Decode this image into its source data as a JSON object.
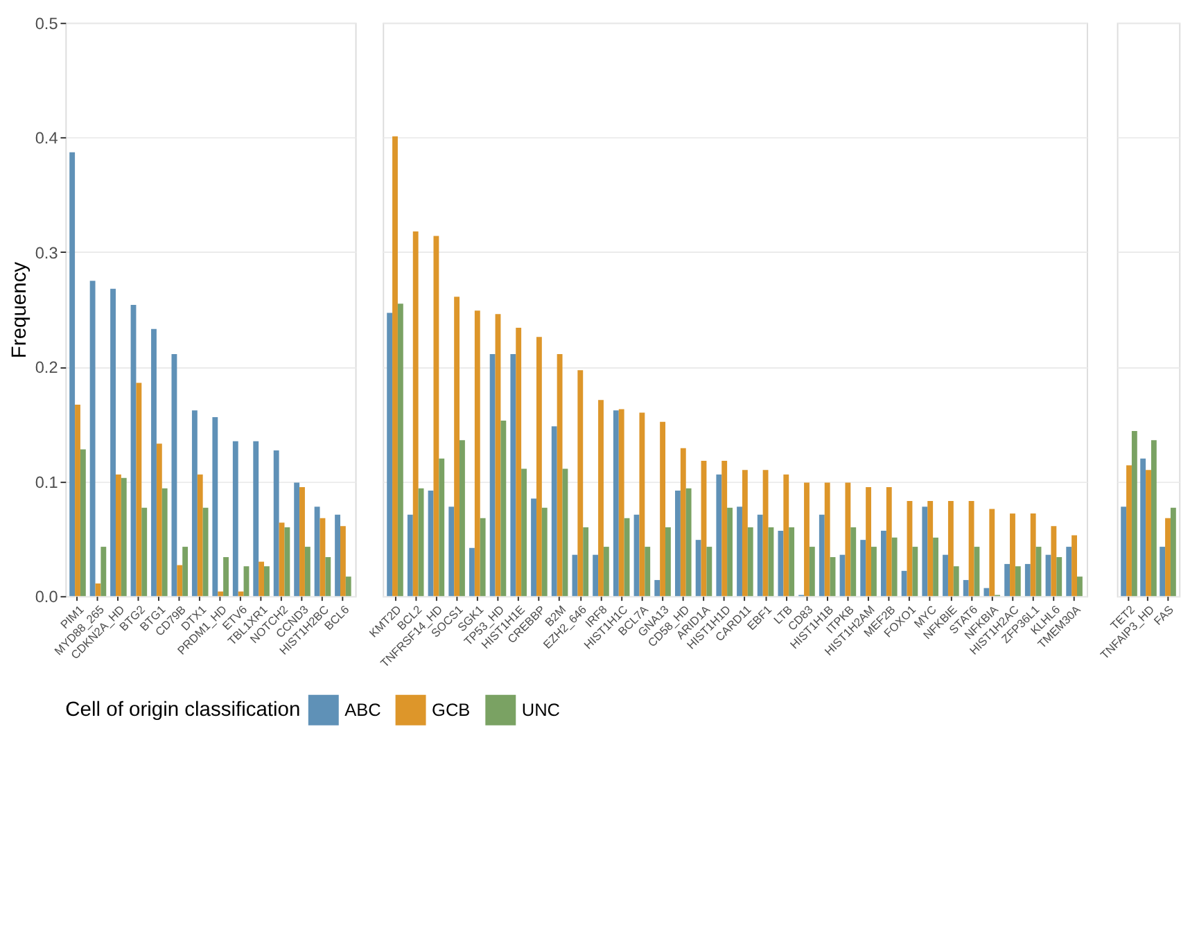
{
  "chart_data": [
    {
      "type": "bar",
      "ylabel": "Frequency",
      "legend_title": "Cell of origin classification",
      "legend": "bottom",
      "grid": "y",
      "ylim": [
        0,
        0.5
      ],
      "yticks": [
        {
          "value": 0,
          "label": "0.0"
        },
        {
          "value": 0.1,
          "label": "0.1"
        },
        {
          "value": 0.2,
          "label": "0.2"
        },
        {
          "value": 0.3,
          "label": "0.3"
        },
        {
          "value": 0.4,
          "label": "0.4"
        },
        {
          "value": 0.5,
          "label": "0.5"
        }
      ],
      "categories": [
        "PIM1",
        "MYD88_265",
        "CDKN2A_HD",
        "BTG2",
        "BTG1",
        "CD79B",
        "DTX1",
        "PRDM1_HD",
        "ETV6",
        "TBL1XR1",
        "NOTCH2",
        "CCND3",
        "HIST1H2BC",
        "BCL6"
      ],
      "series": [
        {
          "name": "ABC",
          "color": "#5f91b7",
          "values": [
            0.387,
            0.275,
            0.268,
            0.254,
            0.233,
            0.211,
            0.162,
            0.156,
            0.135,
            0.135,
            0.127,
            0.099,
            0.078,
            0.071
          ]
        },
        {
          "name": "GCB",
          "color": "#dd962a",
          "values": [
            0.167,
            0.011,
            0.106,
            0.186,
            0.133,
            0.027,
            0.106,
            0.004,
            0.004,
            0.03,
            0.064,
            0.095,
            0.068,
            0.061
          ]
        },
        {
          "name": "UNC",
          "color": "#7aa263",
          "values": [
            0.128,
            0.043,
            0.103,
            0.077,
            0.094,
            0.043,
            0.077,
            0.034,
            0.026,
            0.026,
            0.06,
            0.043,
            0.034,
            0.017
          ]
        }
      ]
    },
    {
      "type": "bar",
      "grid": "y",
      "ylim": [
        0,
        0.5
      ],
      "tick_labels": "x",
      "categories": [
        "KMT2D",
        "BCL2",
        "TNFRSF14_HD",
        "SOCS1",
        "SGK1",
        "TP53_HD",
        "HIST1H1E",
        "CREBBP",
        "B2M",
        "EZH2_646",
        "IRF8",
        "HIST1H1C",
        "BCL7A",
        "GNA13",
        "CD58_HD",
        "ARID1A",
        "HIST1H1D",
        "CARD11",
        "EBF1",
        "LTB",
        "CD83",
        "HIST1H1B",
        "ITPKB",
        "HIST1H2AM",
        "MEF2B",
        "FOXO1",
        "MYC",
        "NFKBIE",
        "STAT6",
        "NFKBIA",
        "HIST1H2AC",
        "ZFP36L1",
        "KLHL6",
        "TMEM30A"
      ],
      "series": [
        {
          "name": "ABC",
          "color": "#5f91b7",
          "values": [
            0.247,
            0.071,
            0.092,
            0.078,
            0.042,
            0.211,
            0.211,
            0.085,
            0.148,
            0.036,
            0.036,
            0.162,
            0.071,
            0.014,
            0.092,
            0.049,
            0.106,
            0.078,
            0.071,
            0.057,
            0.001,
            0.071,
            0.036,
            0.049,
            0.057,
            0.022,
            0.078,
            0.036,
            0.014,
            0.007,
            0.028,
            0.028,
            0.036,
            0.043
          ]
        },
        {
          "name": "GCB",
          "color": "#dd962a",
          "values": [
            0.401,
            0.318,
            0.314,
            0.261,
            0.249,
            0.246,
            0.234,
            0.226,
            0.211,
            0.197,
            0.171,
            0.163,
            0.16,
            0.152,
            0.129,
            0.118,
            0.118,
            0.11,
            0.11,
            0.106,
            0.099,
            0.099,
            0.099,
            0.095,
            0.095,
            0.083,
            0.083,
            0.083,
            0.083,
            0.076,
            0.072,
            0.072,
            0.061,
            0.053
          ]
        },
        {
          "name": "UNC",
          "color": "#7aa263",
          "values": [
            0.255,
            0.094,
            0.12,
            0.136,
            0.068,
            0.153,
            0.111,
            0.077,
            0.111,
            0.06,
            0.043,
            0.068,
            0.043,
            0.06,
            0.094,
            0.043,
            0.077,
            0.06,
            0.06,
            0.06,
            0.043,
            0.034,
            0.06,
            0.043,
            0.051,
            0.043,
            0.051,
            0.026,
            0.043,
            0.001,
            0.026,
            0.043,
            0.034,
            0.017
          ]
        }
      ]
    },
    {
      "type": "bar",
      "grid": "y",
      "ylim": [
        0,
        0.5
      ],
      "tick_labels": "x",
      "categories": [
        "TET2",
        "TNFAIP3_HD",
        "FAS"
      ],
      "series": [
        {
          "name": "ABC",
          "color": "#5f91b7",
          "values": [
            0.078,
            0.12,
            0.043
          ]
        },
        {
          "name": "GCB",
          "color": "#dd962a",
          "values": [
            0.114,
            0.11,
            0.068
          ]
        },
        {
          "name": "UNC",
          "color": "#7aa263",
          "values": [
            0.144,
            0.136,
            0.077
          ]
        }
      ]
    }
  ]
}
